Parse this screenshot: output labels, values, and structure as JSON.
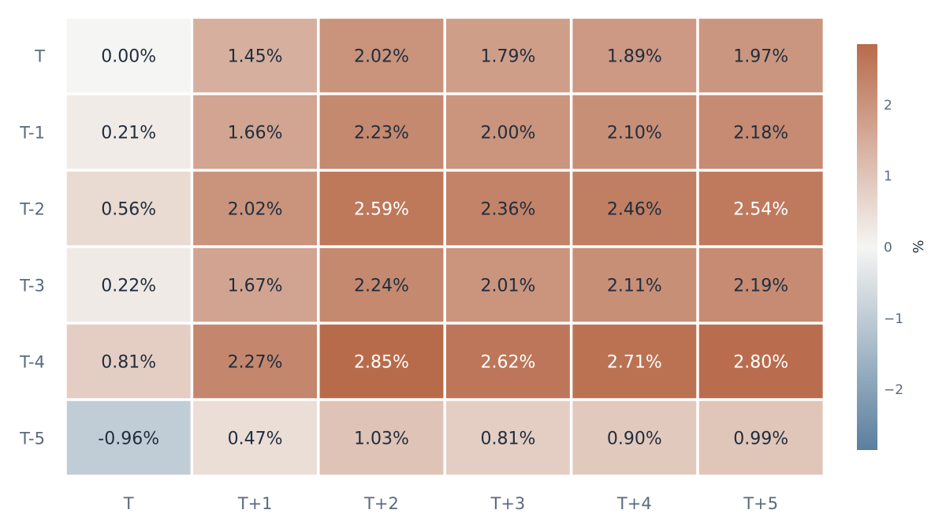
{
  "chart_data": {
    "type": "heatmap",
    "title": "",
    "xlabel": "",
    "ylabel": "",
    "x_categories": [
      "T",
      "T+1",
      "T+2",
      "T+3",
      "T+4",
      "T+5"
    ],
    "y_categories": [
      "T",
      "T-1",
      "T-2",
      "T-3",
      "T-4",
      "T-5"
    ],
    "values": [
      [
        0.0,
        1.45,
        2.02,
        1.79,
        1.89,
        1.97
      ],
      [
        0.21,
        1.66,
        2.23,
        2.0,
        2.1,
        2.18
      ],
      [
        0.56,
        2.02,
        2.59,
        2.36,
        2.46,
        2.54
      ],
      [
        0.22,
        1.67,
        2.24,
        2.01,
        2.11,
        2.19
      ],
      [
        0.81,
        2.27,
        2.85,
        2.62,
        2.71,
        2.8
      ],
      [
        -0.96,
        0.47,
        1.03,
        0.81,
        0.9,
        0.99
      ]
    ],
    "cell_labels": [
      [
        "0.00%",
        "1.45%",
        "2.02%",
        "1.79%",
        "1.89%",
        "1.97%"
      ],
      [
        "0.21%",
        "1.66%",
        "2.23%",
        "2.00%",
        "2.10%",
        "2.18%"
      ],
      [
        "0.56%",
        "2.02%",
        "2.59%",
        "2.36%",
        "2.46%",
        "2.54%"
      ],
      [
        "0.22%",
        "1.67%",
        "2.24%",
        "2.01%",
        "2.11%",
        "2.19%"
      ],
      [
        "0.81%",
        "2.27%",
        "2.85%",
        "2.62%",
        "2.71%",
        "2.80%"
      ],
      [
        "-0.96%",
        "0.47%",
        "1.03%",
        "0.81%",
        "0.90%",
        "0.99%"
      ]
    ],
    "colorscale": {
      "min": -2.85,
      "max": 2.85,
      "low_color": "#5a7f9e",
      "mid_color": "#f5f5f3",
      "high_color": "#b86b4b"
    },
    "colorbar": {
      "title": "%",
      "ticks": [
        2,
        1,
        0,
        -1,
        -2
      ],
      "tick_labels": [
        "2",
        "1",
        "0",
        "−1",
        "−2"
      ]
    },
    "text_colors": {
      "dark": "#1f2d3d",
      "light": "#ffffff"
    },
    "grid": false,
    "legend": "colorbar-right"
  }
}
